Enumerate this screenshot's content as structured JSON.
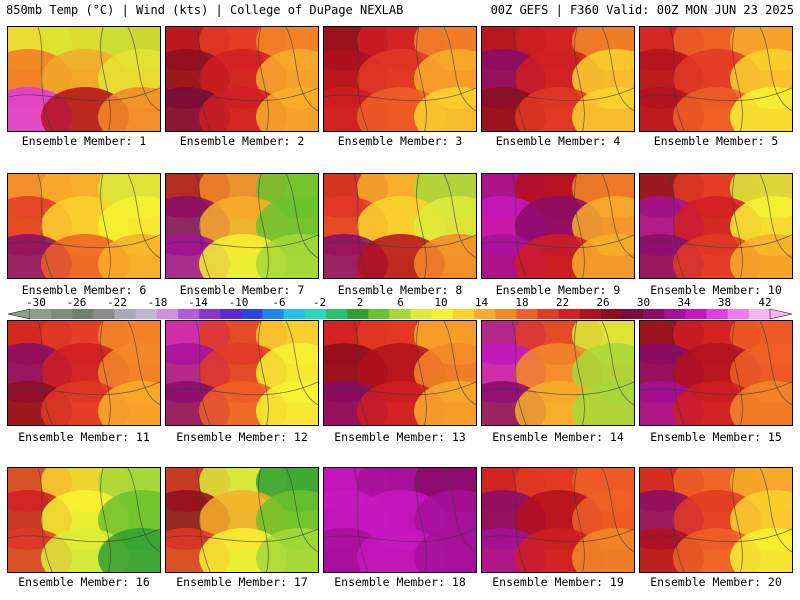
{
  "header": {
    "left": "850mb Temp (°C) | Wind (kts) | College of DuPage NEXLAB",
    "right": "00Z GEFS | F360 Valid: 00Z MON JUN 23 2025"
  },
  "colorbar": {
    "labels": [
      "-30",
      "-26",
      "-22",
      "-18",
      "-14",
      "-10",
      "-6",
      "-2",
      "2",
      "6",
      "10",
      "14",
      "18",
      "22",
      "26",
      "30",
      "34",
      "38",
      "42"
    ],
    "colors": [
      "#8e9d8e",
      "#7f8f7f",
      "#6f7f70",
      "#8a8a8a",
      "#a9a9b9",
      "#c2b6d6",
      "#d08fe0",
      "#b35bd8",
      "#8a34c9",
      "#5b2bd0",
      "#2c44e0",
      "#1e88e8",
      "#27c1e8",
      "#2fd6b6",
      "#28c06a",
      "#2fa033",
      "#6cc22e",
      "#a7d83a",
      "#dcec3a",
      "#f7f332",
      "#fad32e",
      "#f8ae2a",
      "#f38828",
      "#ef6026",
      "#e23a24",
      "#cf1f22",
      "#b3111d",
      "#8e0d1c",
      "#7a0b3a",
      "#8b0a6a",
      "#a7109a",
      "#c818c0",
      "#e23ee0",
      "#f07cf0",
      "#f6b4f6"
    ]
  },
  "panels": [
    {
      "label": "Ensemble Member: 1",
      "base": "#f2b028",
      "pattern": [
        [
          "#e9e233",
          "#d8e533",
          "#c7df33"
        ],
        [
          "#f27a26",
          "#f2a82a",
          "#e6e333"
        ],
        [
          "#e03ae0",
          "#b3111d",
          "#f38828"
        ]
      ]
    },
    {
      "label": "Ensemble Member: 2",
      "base": "#e65a24",
      "pattern": [
        [
          "#b3111d",
          "#e23a24",
          "#f38828"
        ],
        [
          "#8e0d1c",
          "#cf1f22",
          "#f8ae2a"
        ],
        [
          "#7a0b3a",
          "#cf1f22",
          "#f8ae2a"
        ]
      ]
    },
    {
      "label": "Ensemble Member: 3",
      "base": "#e23a24",
      "pattern": [
        [
          "#8e0d1c",
          "#cf1f22",
          "#f38828"
        ],
        [
          "#b3111d",
          "#e23a24",
          "#f8ae2a"
        ],
        [
          "#cf1f22",
          "#ef6026",
          "#fad32e"
        ]
      ]
    },
    {
      "label": "Ensemble Member: 4",
      "base": "#e23a24",
      "pattern": [
        [
          "#b3111d",
          "#cf1f22",
          "#f38828"
        ],
        [
          "#8b0a6a",
          "#cf1f22",
          "#fad32e"
        ],
        [
          "#8e0d1c",
          "#e23a24",
          "#fad32e"
        ]
      ]
    },
    {
      "label": "Ensemble Member: 5",
      "base": "#ef6026",
      "pattern": [
        [
          "#cf1f22",
          "#ef6026",
          "#f8ae2a"
        ],
        [
          "#b3111d",
          "#e23a24",
          "#fad32e"
        ],
        [
          "#b3111d",
          "#ef6026",
          "#f7f332"
        ]
      ]
    },
    {
      "label": "Ensemble Member: 6",
      "base": "#f8ae2a",
      "pattern": [
        [
          "#f38828",
          "#f8ae2a",
          "#dcec3a"
        ],
        [
          "#e23a24",
          "#fad32e",
          "#f7f332"
        ],
        [
          "#8b0a6a",
          "#ef6026",
          "#f8ae2a"
        ]
      ]
    },
    {
      "label": "Ensemble Member: 7",
      "base": "#a7d83a",
      "pattern": [
        [
          "#b3111d",
          "#f38828",
          "#6cc22e"
        ],
        [
          "#8b0a6a",
          "#f8ae2a",
          "#6cc22e"
        ],
        [
          "#a7109a",
          "#f7f332",
          "#a7d83a"
        ]
      ]
    },
    {
      "label": "Ensemble Member: 8",
      "base": "#f8ae2a",
      "pattern": [
        [
          "#cf1f22",
          "#f8ae2a",
          "#a7d83a"
        ],
        [
          "#e23a24",
          "#fad32e",
          "#dcec3a"
        ],
        [
          "#8b0a6a",
          "#b3111d",
          "#f38828"
        ]
      ]
    },
    {
      "label": "Ensemble Member: 9",
      "base": "#cf1f22",
      "pattern": [
        [
          "#a7109a",
          "#b3111d",
          "#f38828"
        ],
        [
          "#c818c0",
          "#8b0a6a",
          "#f8ae2a"
        ],
        [
          "#a7109a",
          "#cf1f22",
          "#f8ae2a"
        ]
      ]
    },
    {
      "label": "Ensemble Member: 10",
      "base": "#ef6026",
      "pattern": [
        [
          "#8e0d1c",
          "#e23a24",
          "#dcec3a"
        ],
        [
          "#a7109a",
          "#cf1f22",
          "#f7f332"
        ],
        [
          "#8b0a6a",
          "#e23a24",
          "#f8ae2a"
        ]
      ]
    },
    {
      "label": "Ensemble Member: 11",
      "base": "#ef6026",
      "pattern": [
        [
          "#cf1f22",
          "#e23a24",
          "#f38828"
        ],
        [
          "#8b0a6a",
          "#cf1f22",
          "#f38828"
        ],
        [
          "#8e0d1c",
          "#e23a24",
          "#f8ae2a"
        ]
      ]
    },
    {
      "label": "Ensemble Member: 12",
      "base": "#f8ae2a",
      "pattern": [
        [
          "#c818c0",
          "#e23a24",
          "#fad32e"
        ],
        [
          "#a7109a",
          "#e23a24",
          "#f7f332"
        ],
        [
          "#8b0a6a",
          "#ef6026",
          "#f7f332"
        ]
      ]
    },
    {
      "label": "Ensemble Member: 13",
      "base": "#e23a24",
      "pattern": [
        [
          "#cf1f22",
          "#e23a24",
          "#f8ae2a"
        ],
        [
          "#8e0d1c",
          "#b3111d",
          "#f38828"
        ],
        [
          "#8b0a6a",
          "#cf1f22",
          "#f8ae2a"
        ]
      ]
    },
    {
      "label": "Ensemble Member: 14",
      "base": "#f8ae2a",
      "pattern": [
        [
          "#a7109a",
          "#e23a24",
          "#dcec3a"
        ],
        [
          "#c818c0",
          "#f38828",
          "#a7d83a"
        ],
        [
          "#8b0a6a",
          "#f8ae2a",
          "#a7d83a"
        ]
      ]
    },
    {
      "label": "Ensemble Member: 15",
      "base": "#e23a24",
      "pattern": [
        [
          "#8e0d1c",
          "#cf1f22",
          "#ef6026"
        ],
        [
          "#8b0a6a",
          "#b3111d",
          "#ef6026"
        ],
        [
          "#a7109a",
          "#cf1f22",
          "#f38828"
        ]
      ]
    },
    {
      "label": "Ensemble Member: 16",
      "base": "#a7d83a",
      "pattern": [
        [
          "#e23a24",
          "#fad32e",
          "#a7d83a"
        ],
        [
          "#cf1f22",
          "#f7f332",
          "#6cc22e"
        ],
        [
          "#e23a24",
          "#dcec3a",
          "#2fa033"
        ]
      ]
    },
    {
      "label": "Ensemble Member: 17",
      "base": "#a7d83a",
      "pattern": [
        [
          "#cf1f22",
          "#dcec3a",
          "#2fa033"
        ],
        [
          "#8e0d1c",
          "#f8ae2a",
          "#6cc22e"
        ],
        [
          "#e23a24",
          "#f7f332",
          "#a7d83a"
        ]
      ]
    },
    {
      "label": "Ensemble Member: 18",
      "base": "#a7109a",
      "pattern": [
        [
          "#c818c0",
          "#a7109a",
          "#8b0a6a"
        ],
        [
          "#c818c0",
          "#c818c0",
          "#a7109a"
        ],
        [
          "#a7109a",
          "#c818c0",
          "#a7109a"
        ]
      ]
    },
    {
      "label": "Ensemble Member: 19",
      "base": "#e23a24",
      "pattern": [
        [
          "#cf1f22",
          "#e23a24",
          "#ef6026"
        ],
        [
          "#8b0a6a",
          "#b3111d",
          "#ef6026"
        ],
        [
          "#a7109a",
          "#cf1f22",
          "#f38828"
        ]
      ]
    },
    {
      "label": "Ensemble Member: 20",
      "base": "#f38828",
      "pattern": [
        [
          "#cf1f22",
          "#ef6026",
          "#f8ae2a"
        ],
        [
          "#8b0a6a",
          "#e23a24",
          "#fad32e"
        ],
        [
          "#b3111d",
          "#ef6026",
          "#f7f332"
        ]
      ]
    }
  ]
}
